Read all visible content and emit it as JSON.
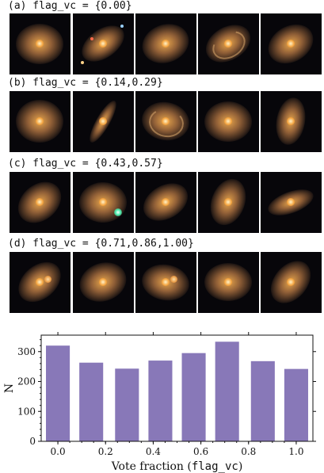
{
  "panels": [
    {
      "label": "(a) flag_vc = {0.00}",
      "galaxies": [
        {
          "kind": "round",
          "rot": 0,
          "ecc": 0.85
        },
        {
          "kind": "elliptical",
          "rot": -35,
          "ecc": 0.6,
          "stars": true
        },
        {
          "kind": "round",
          "rot": -20,
          "ecc": 0.8
        },
        {
          "kind": "spiral",
          "rot": -30,
          "ecc": 0.7
        },
        {
          "kind": "round",
          "rot": -30,
          "ecc": 0.75
        }
      ]
    },
    {
      "label": "(b) flag_vc = {0.14,0.29}",
      "galaxies": [
        {
          "kind": "round",
          "rot": 0,
          "ecc": 0.9
        },
        {
          "kind": "edgeon",
          "rot": -60,
          "ecc": 0.28
        },
        {
          "kind": "spiral",
          "rot": 10,
          "ecc": 0.8
        },
        {
          "kind": "round",
          "rot": 0,
          "ecc": 0.85
        },
        {
          "kind": "round",
          "rot": -80,
          "ecc": 0.6
        }
      ]
    },
    {
      "label": "(c) flag_vc = {0.43,0.57}",
      "galaxies": [
        {
          "kind": "round",
          "rot": -40,
          "ecc": 0.75
        },
        {
          "kind": "round",
          "rot": 0,
          "ecc": 0.85,
          "greenstar": true
        },
        {
          "kind": "round",
          "rot": -30,
          "ecc": 0.7
        },
        {
          "kind": "round",
          "rot": -70,
          "ecc": 0.7
        },
        {
          "kind": "elliptical",
          "rot": -20,
          "ecc": 0.45
        }
      ]
    },
    {
      "label": "(d) flag_vc = {0.71,0.86,1.00}",
      "galaxies": [
        {
          "kind": "merger",
          "rot": -40,
          "ecc": 0.7
        },
        {
          "kind": "round",
          "rot": -20,
          "ecc": 0.8
        },
        {
          "kind": "merger",
          "rot": 10,
          "ecc": 0.75
        },
        {
          "kind": "round",
          "rot": 0,
          "ecc": 0.8
        },
        {
          "kind": "round",
          "rot": -50,
          "ecc": 0.7
        }
      ]
    }
  ],
  "colors": {
    "bar": "#8878b8",
    "thumb_bg": "#07060a",
    "galaxy_core": "#f3a23d",
    "galaxy_halo": "#b57a45"
  },
  "chart_data": {
    "type": "bar",
    "x": [
      0.0,
      0.14,
      0.29,
      0.43,
      0.57,
      0.71,
      0.86,
      1.0
    ],
    "values": [
      320,
      263,
      243,
      270,
      295,
      333,
      268,
      242
    ],
    "xlabel_prefix": "Vote fraction (",
    "xlabel_code": "flag_vc",
    "xlabel_suffix": ")",
    "ylabel": "N",
    "xlim": [
      -0.07,
      1.07
    ],
    "ylim": [
      0,
      355
    ],
    "xticks": [
      "0.0",
      "0.2",
      "0.4",
      "0.6",
      "0.8",
      "1.0"
    ],
    "yticks": [
      "0",
      "100",
      "200",
      "300"
    ],
    "grid": false
  }
}
